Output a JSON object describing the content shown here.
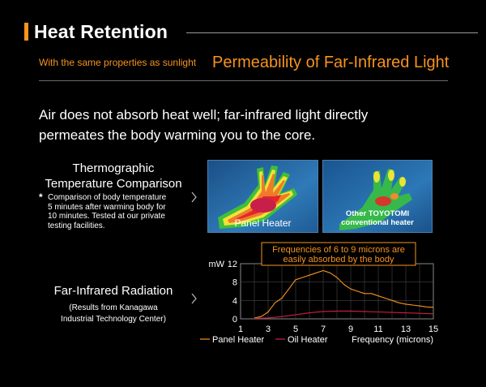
{
  "header": {
    "title": "Heat Retention"
  },
  "subheading": {
    "small": "With the same properties as sunlight",
    "big": "Permeability of Far-Infrared Light"
  },
  "lead": {
    "line1": "Air does not absorb heat well; far-infrared light directly",
    "line2": "permeates the body warming you to the core."
  },
  "thermo": {
    "label_line1": "Thermographic",
    "label_line2": "Temperature Comparison",
    "note_mark": "*",
    "note_lines": [
      "Comparison of body temperature",
      "5 minutes after warming body for",
      "10 minutes. Tested at our private",
      "testing facilities."
    ],
    "photos": [
      {
        "caption": "Panel Heater"
      },
      {
        "caption_line1": "Other TOYOTOMI",
        "caption_line2": "conventional heater"
      }
    ]
  },
  "radiation": {
    "label": "Far-Infrared Radiation",
    "source_line1": "(Results from Kanagawa",
    "source_line2": "Industrial Technology Center)"
  },
  "colors": {
    "accent": "#f7931e",
    "panel_line": "#f7931e",
    "oil_line": "#cc1f4a"
  },
  "chart_data": {
    "type": "line",
    "ylabel": "mW",
    "xlabel": "Frequency (microns)",
    "xlim": [
      1,
      15
    ],
    "ylim": [
      0,
      12
    ],
    "x_ticks": [
      "1",
      "3",
      "5",
      "7",
      "9",
      "11",
      "13",
      "15"
    ],
    "y_ticks": [
      "0",
      "4",
      "8",
      "12"
    ],
    "annotation_line1": "Frequencies of 6 to 9 microns are",
    "annotation_line2": "easily absorbed by the body",
    "legend": [
      "Panel Heater",
      "Oil Heater"
    ],
    "series": [
      {
        "name": "Panel Heater",
        "x": [
          2,
          2.5,
          3,
          3.5,
          4,
          4.5,
          5,
          5.5,
          6,
          6.5,
          7,
          7.5,
          8,
          8.5,
          9,
          9.5,
          10,
          10.5,
          11,
          11.5,
          12,
          12.5,
          13,
          13.5,
          14,
          14.5,
          15
        ],
        "y": [
          0.2,
          0.5,
          1.5,
          3.5,
          4.5,
          6.5,
          8.5,
          9.0,
          9.5,
          10.0,
          10.5,
          10.0,
          9.0,
          7.5,
          6.5,
          6.0,
          5.5,
          5.5,
          5.0,
          4.5,
          4.0,
          3.5,
          3.2,
          3.0,
          2.8,
          2.6,
          2.5
        ]
      },
      {
        "name": "Oil Heater",
        "x": [
          2,
          3,
          4,
          5,
          6,
          7,
          8,
          9,
          10,
          11,
          12,
          13,
          14,
          15
        ],
        "y": [
          0.1,
          0.2,
          0.5,
          0.9,
          1.3,
          1.6,
          1.7,
          1.7,
          1.6,
          1.5,
          1.4,
          1.3,
          1.2,
          1.1
        ]
      }
    ]
  }
}
